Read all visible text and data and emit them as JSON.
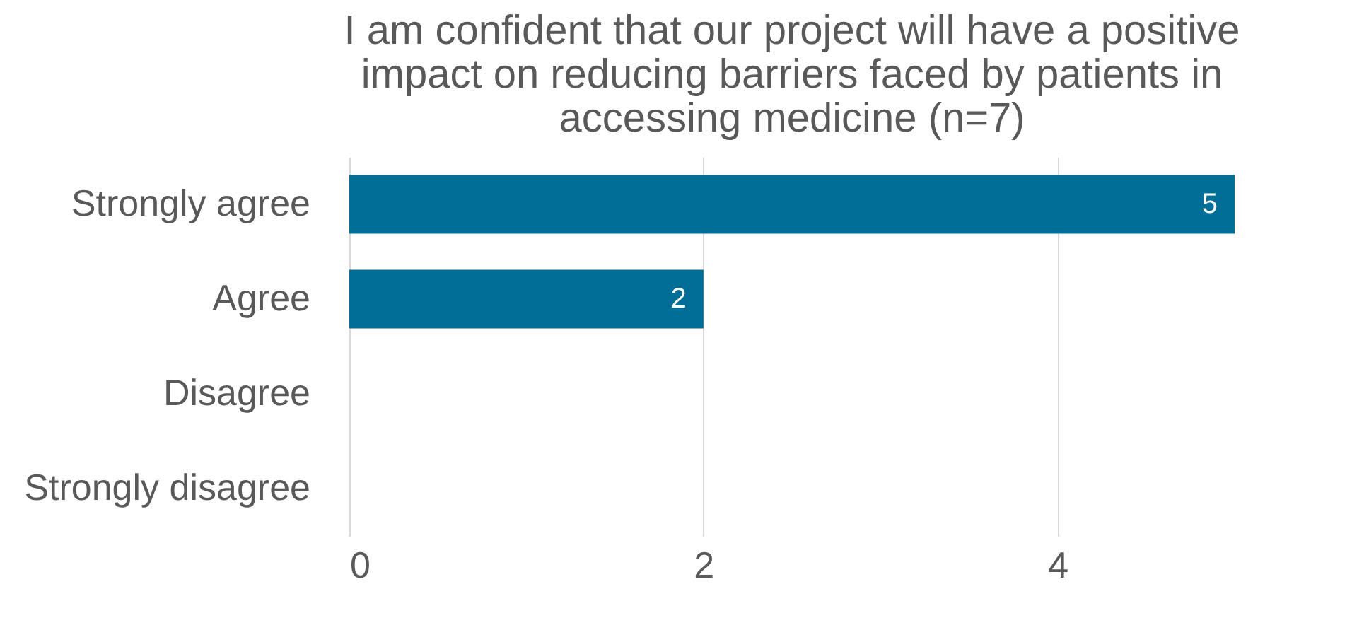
{
  "chart_data": {
    "type": "bar",
    "orientation": "horizontal",
    "title": [
      "I am confident that our project will have a positive",
      "impact on reducing barriers faced by patients in",
      "accessing medicine (n=7)"
    ],
    "categories": [
      "Strongly agree",
      "Agree",
      "Disagree",
      "Strongly disagree"
    ],
    "values": [
      5,
      2,
      0,
      0
    ],
    "value_labels": [
      "5",
      "2",
      null,
      null
    ],
    "color": "#006e96",
    "xlim": [
      0,
      5
    ],
    "xticks": [
      0,
      2,
      4
    ],
    "grid": "x"
  }
}
